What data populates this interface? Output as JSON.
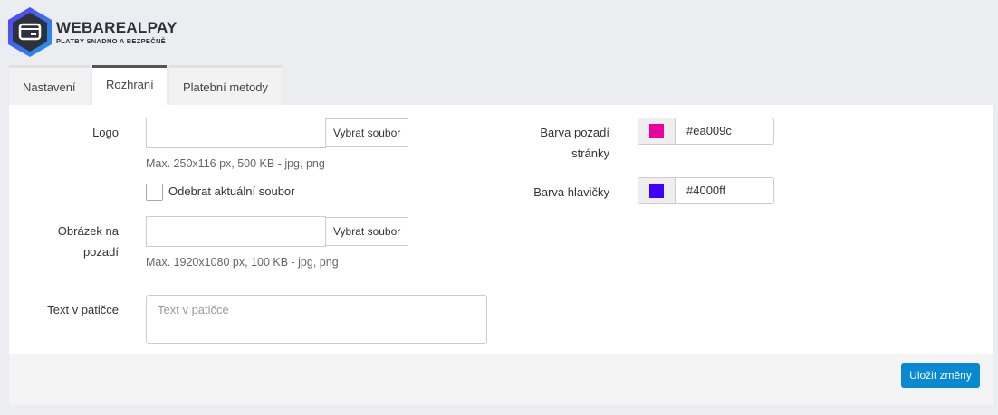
{
  "brand": {
    "name": "WEBAREALPAY",
    "tagline": "PLATBY SNADNO A BEZPEČNĚ"
  },
  "tabs": [
    {
      "label": "Nastavení"
    },
    {
      "label": "Rozhraní",
      "active": true
    },
    {
      "label": "Platební metody"
    }
  ],
  "form": {
    "logo": {
      "label": "Logo",
      "button": "Vybrat soubor",
      "help": "Max. 250x116 px, 500 KB - jpg, png",
      "remove_label": "Odebrat aktuální soubor",
      "remove_checked": false
    },
    "background": {
      "label_line1": "Obrázek na",
      "label_line2": "pozadí",
      "button": "Vybrat soubor",
      "help": "Max. 1920x1080 px, 100 KB - jpg, png"
    },
    "footer_text": {
      "label": "Text v patičce",
      "placeholder": "Text v patičce",
      "value": ""
    },
    "page_bg_color": {
      "label_line1": "Barva pozadí",
      "label_line2": "stránky",
      "value": "#ea009c"
    },
    "header_color": {
      "label": "Barva hlavičky",
      "value": "#4000ff"
    }
  },
  "actions": {
    "save_label": "Uložit změny",
    "save_color": "#0a89d3"
  }
}
